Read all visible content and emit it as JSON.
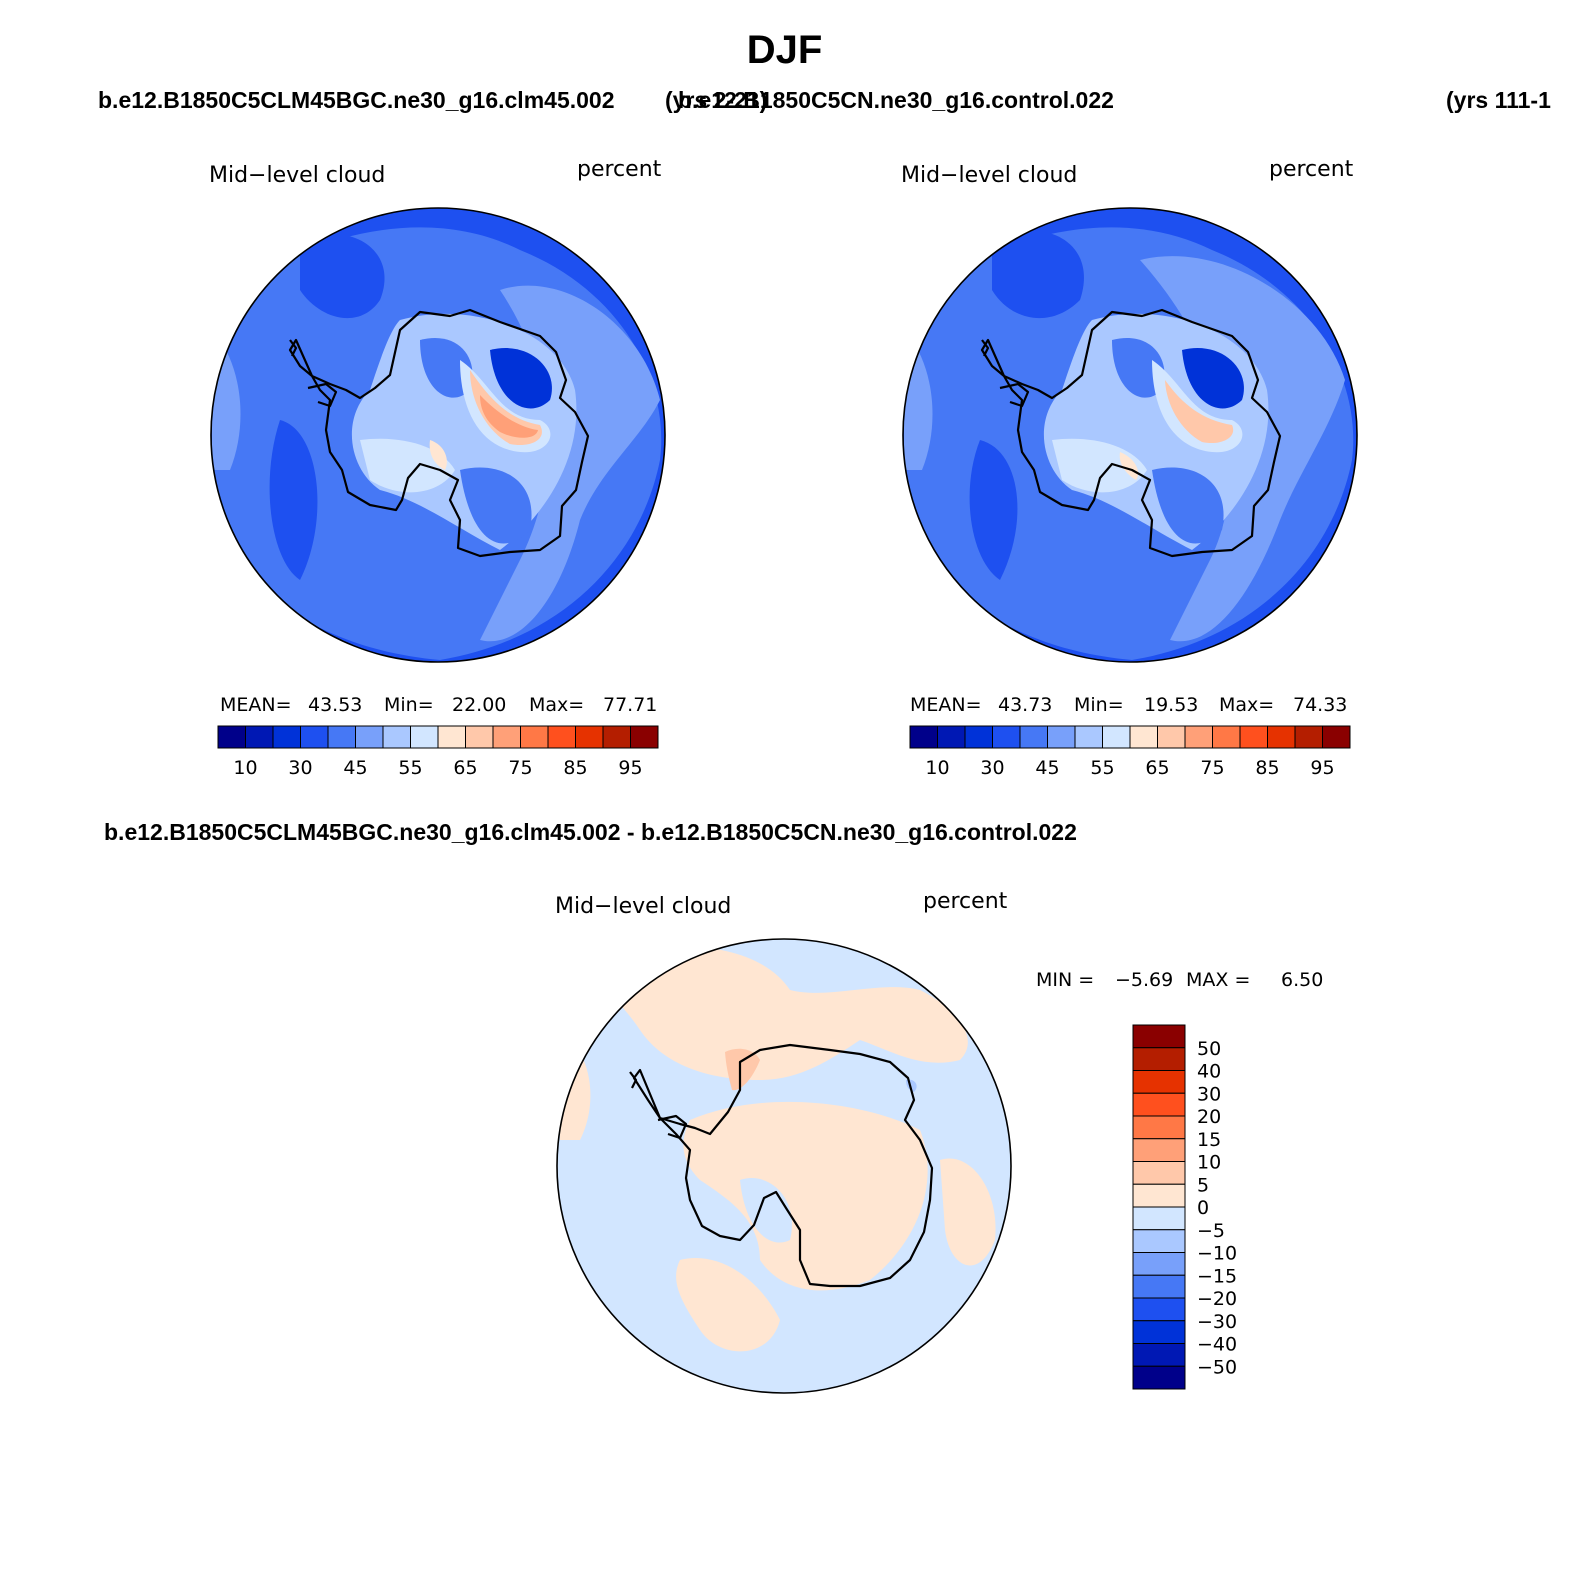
{
  "page": {
    "title": "DJF",
    "case1_title": "b.e12.B1850C5CLM45BGC.ne30_g16.clm45.002",
    "case1_years": "(yrs 2-21)",
    "case2_title": "b.e12.B1850C5CN.ne30_g16.control.022",
    "case2_years": "(yrs 111-1",
    "diff_title": "b.e12.B1850C5CLM45BGC.ne30_g16.clm45.002 - b.e12.B1850C5CN.ne30_g16.control.022"
  },
  "panels": {
    "top_left": {
      "variable": "Mid−level cloud",
      "units": "percent",
      "mean_label": "MEAN=",
      "mean": "43.53",
      "min_label": "Min=",
      "min": "22.00",
      "max_label": "Max=",
      "max": "77.71"
    },
    "top_right": {
      "variable": "Mid−level cloud",
      "units": "percent",
      "mean_label": "MEAN=",
      "mean": "43.73",
      "min_label": "Min=",
      "min": "19.53",
      "max_label": "Max=",
      "max": "74.33"
    },
    "bottom": {
      "variable": "Mid−level cloud",
      "units": "percent",
      "min_label": "MIN =",
      "min": "−5.69",
      "max_label": "MAX =",
      "max": "6.50"
    }
  },
  "colorbar_abs": {
    "colors": [
      "#00008a",
      "#0018b4",
      "#0032d8",
      "#1e50f0",
      "#4678f5",
      "#78a0fa",
      "#aac8ff",
      "#d2e6ff",
      "#ffe6d2",
      "#ffc8aa",
      "#ffa078",
      "#ff7846",
      "#ff501e",
      "#e63200",
      "#b41e00",
      "#8a0000"
    ],
    "tick_labels": [
      "10",
      "30",
      "45",
      "55",
      "65",
      "75",
      "85",
      "95"
    ]
  },
  "colorbar_diff": {
    "colors": [
      "#8a0000",
      "#b41e00",
      "#e63200",
      "#ff501e",
      "#ff7846",
      "#ffa078",
      "#ffc8aa",
      "#ffe6d2",
      "#d2e6ff",
      "#aac8ff",
      "#78a0fa",
      "#4678f5",
      "#1e50f0",
      "#0032d8",
      "#0018b4",
      "#00008a"
    ],
    "tick_labels": [
      "50",
      "40",
      "30",
      "20",
      "15",
      "10",
      "5",
      "0",
      "−5",
      "−10",
      "−15",
      "−20",
      "−30",
      "−40",
      "−50"
    ]
  },
  "map_colors": {
    "ocean_dark": "#1e50f0",
    "ocean_mid": "#4678f5",
    "ocean_light": "#78a0fa",
    "pale_blue": "#aac8ff",
    "very_pale_blue": "#d2e6ff",
    "peach": "#ffe6d2",
    "light_orange": "#ffc8aa",
    "orange": "#ffa078",
    "deep_blue": "#0032d8"
  }
}
